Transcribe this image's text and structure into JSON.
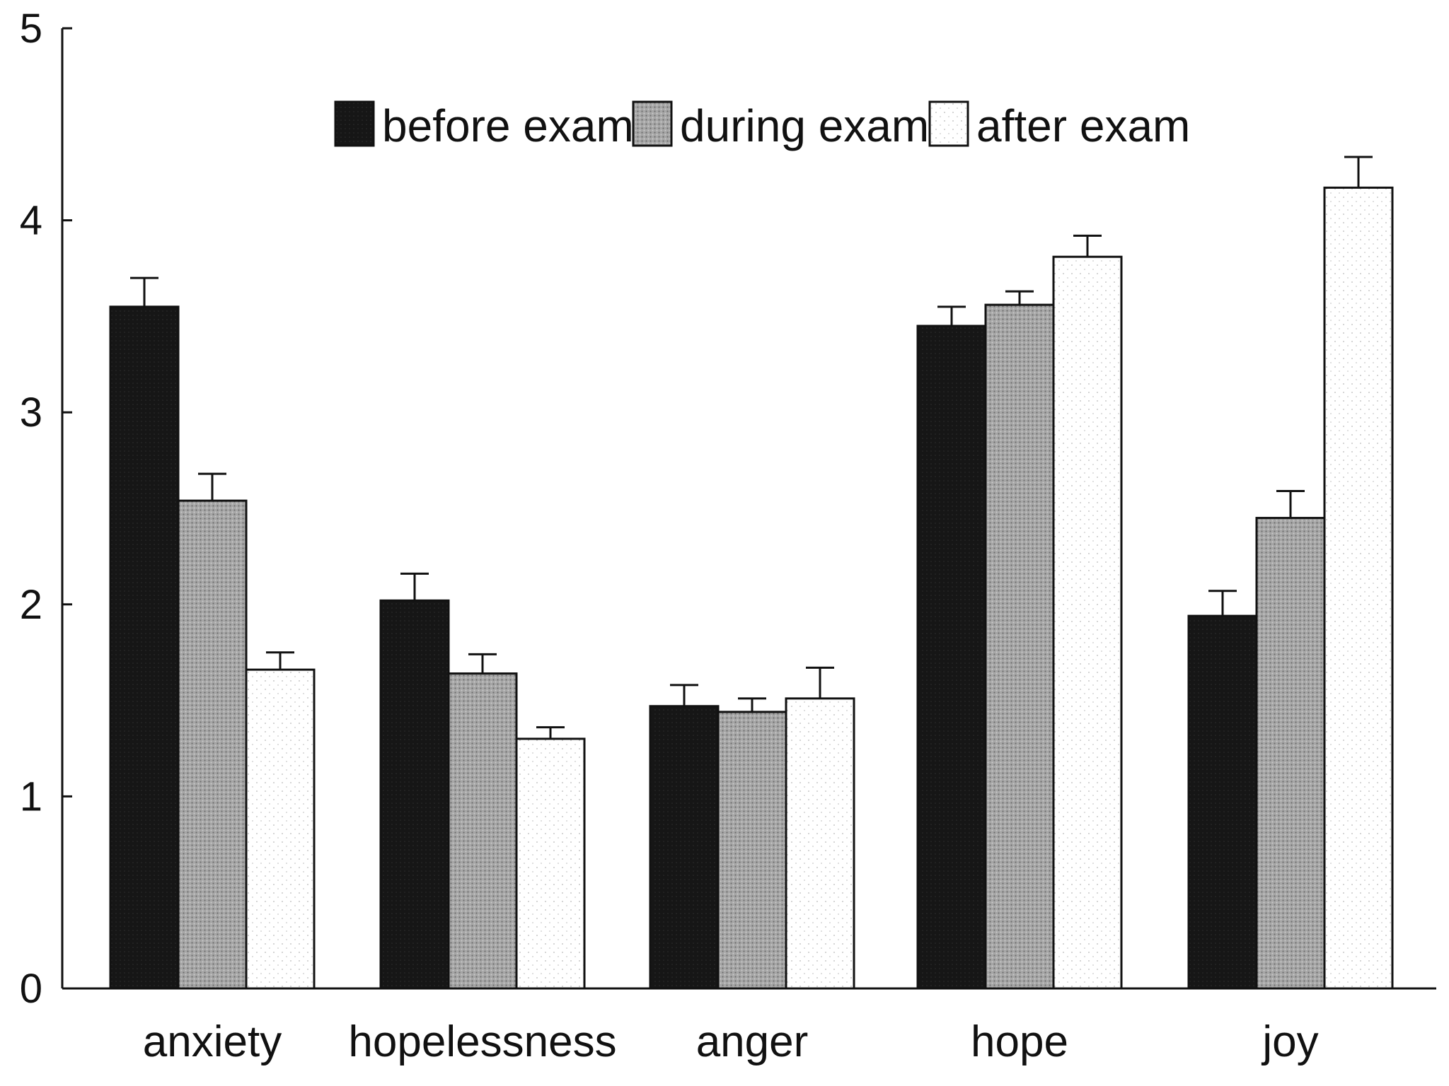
{
  "chart_data": {
    "type": "bar",
    "title": "",
    "xlabel": "",
    "ylabel": "",
    "ylim": [
      0,
      5
    ],
    "yticks": [
      0,
      1,
      2,
      3,
      4,
      5
    ],
    "grid": false,
    "legend_position": "top-center",
    "categories": [
      "anxiety",
      "hopelessness",
      "anger",
      "hope",
      "joy"
    ],
    "series": [
      {
        "name": "before exam",
        "color": "#1a1a1a",
        "pattern": "solid-dark",
        "values": [
          3.55,
          2.02,
          1.47,
          3.45,
          1.94
        ],
        "errors": [
          0.15,
          0.14,
          0.11,
          0.1,
          0.13
        ]
      },
      {
        "name": "during exam",
        "color": "#8f8f8f",
        "pattern": "gray-dotted",
        "values": [
          2.54,
          1.64,
          1.44,
          3.56,
          2.45
        ],
        "errors": [
          0.14,
          0.1,
          0.07,
          0.07,
          0.14
        ]
      },
      {
        "name": "after exam",
        "color": "#ffffff",
        "pattern": "white-dotted",
        "values": [
          1.66,
          1.3,
          1.51,
          3.81,
          4.17
        ],
        "errors": [
          0.09,
          0.06,
          0.16,
          0.11,
          0.16
        ]
      }
    ]
  }
}
